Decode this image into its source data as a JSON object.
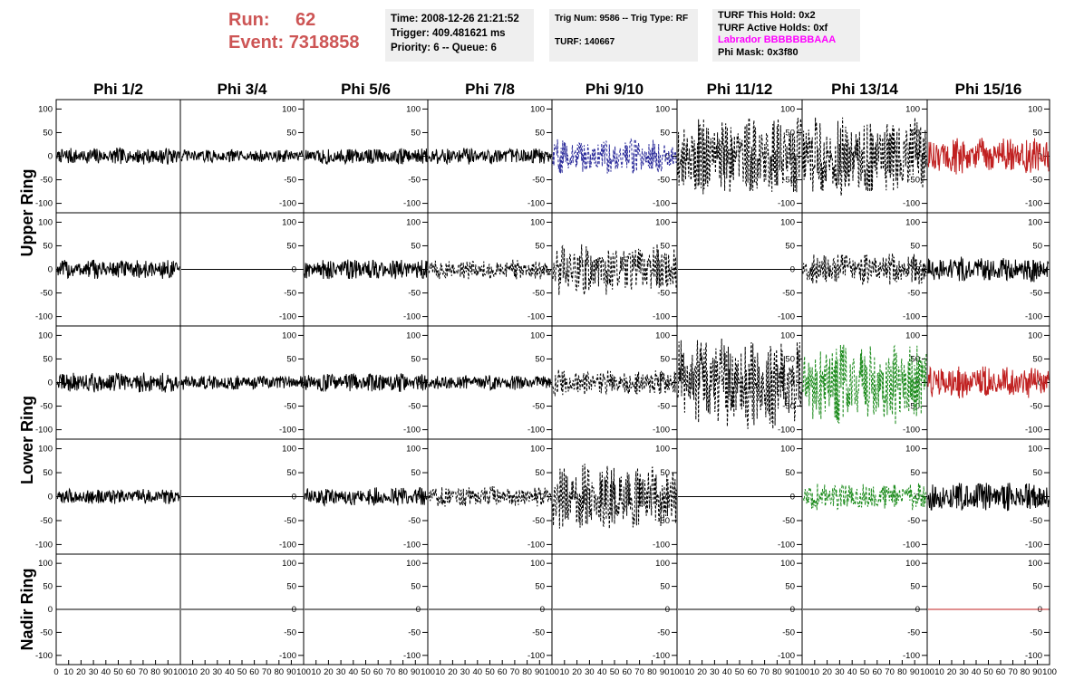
{
  "header": {
    "run_label": "Run:",
    "run_value": "62",
    "event_label": "Event:",
    "event_value": "7318858",
    "time": "Time: 2008-12-26 21:21:52",
    "trigger": "Trigger: 409.481621 ms",
    "priority": "Priority: 6 -- Queue: 6",
    "trig_num": "Trig Num: 9586 -- Trig Type: RF",
    "turf": "TURF: 140667",
    "turf_this_hold": "TURF This Hold: 0x2",
    "turf_active_holds": "TURF Active Holds: 0xf",
    "labrador": "Labrador BBBBBBBAAA",
    "phi_mask": "Phi Mask: 0x3f80"
  },
  "colors": {
    "run_text": "#cd5555",
    "info_bg": "#efefef",
    "labrador_text": "#ff00ff",
    "trace_black": "#000000",
    "trace_blue": "#2a2a9a",
    "trace_red": "#c02020",
    "trace_green": "#1a8a1a"
  },
  "chart_data": {
    "type": "line",
    "columns": [
      "Phi 1/2",
      "Phi 3/4",
      "Phi 5/6",
      "Phi 7/8",
      "Phi 9/10",
      "Phi 11/12",
      "Phi 13/14",
      "Phi 15/16"
    ],
    "row_labels": [
      {
        "label": "Upper Ring",
        "rows": [
          0,
          1
        ]
      },
      {
        "label": "Lower Ring",
        "rows": [
          2,
          3
        ]
      },
      {
        "label": "Nadir Ring",
        "rows": [
          4
        ]
      }
    ],
    "ylim": [
      -120,
      120
    ],
    "yticks": [
      100,
      50,
      0,
      -50,
      -100
    ],
    "xlim": [
      0,
      100
    ],
    "xticks_first": [
      "0",
      "10",
      "20",
      "30",
      "40",
      "50",
      "60",
      "70",
      "80",
      "90",
      "100"
    ],
    "xticks_other": [
      "10",
      "20",
      "30",
      "40",
      "50",
      "60",
      "70",
      "80",
      "90",
      "100"
    ],
    "panels": [
      [
        {
          "amp": 18,
          "color": "black",
          "style": "solid"
        },
        {
          "amp": 14,
          "color": "black",
          "style": "solid"
        },
        {
          "amp": 18,
          "color": "black",
          "style": "solid"
        },
        {
          "amp": 18,
          "color": "black",
          "style": "solid"
        },
        {
          "amp": 38,
          "color": "blue",
          "style": "dashed"
        },
        {
          "amp": 85,
          "color": "black",
          "style": "dashed"
        },
        {
          "amp": 85,
          "color": "black",
          "style": "dashed"
        },
        {
          "amp": 40,
          "color": "red",
          "style": "solid"
        }
      ],
      [
        {
          "amp": 22,
          "color": "black",
          "style": "solid"
        },
        {
          "amp": 0,
          "color": "black",
          "style": "flat"
        },
        {
          "amp": 22,
          "color": "black",
          "style": "solid"
        },
        {
          "amp": 22,
          "color": "black",
          "style": "dashed"
        },
        {
          "amp": 55,
          "color": "black",
          "style": "dashed"
        },
        {
          "amp": 0,
          "color": "black",
          "style": "flat"
        },
        {
          "amp": 35,
          "color": "black",
          "style": "dashed"
        },
        {
          "amp": 28,
          "color": "black",
          "style": "solid"
        }
      ],
      [
        {
          "amp": 22,
          "color": "black",
          "style": "solid"
        },
        {
          "amp": 16,
          "color": "black",
          "style": "solid"
        },
        {
          "amp": 20,
          "color": "black",
          "style": "solid"
        },
        {
          "amp": 16,
          "color": "black",
          "style": "solid"
        },
        {
          "amp": 28,
          "color": "black",
          "style": "dashed"
        },
        {
          "amp": 100,
          "color": "black",
          "style": "dashed"
        },
        {
          "amp": 95,
          "color": "green",
          "style": "dashed"
        },
        {
          "amp": 35,
          "color": "red",
          "style": "solid"
        }
      ],
      [
        {
          "amp": 16,
          "color": "black",
          "style": "solid"
        },
        {
          "amp": 0,
          "color": "black",
          "style": "flat"
        },
        {
          "amp": 20,
          "color": "black",
          "style": "solid"
        },
        {
          "amp": 22,
          "color": "black",
          "style": "dashed"
        },
        {
          "amp": 70,
          "color": "black",
          "style": "dashed"
        },
        {
          "amp": 0,
          "color": "black",
          "style": "flat"
        },
        {
          "amp": 30,
          "color": "green",
          "style": "dashed"
        },
        {
          "amp": 30,
          "color": "black",
          "style": "solid"
        }
      ],
      [
        {
          "amp": 0,
          "color": "black",
          "style": "flat"
        },
        {
          "amp": 0,
          "color": "black",
          "style": "flat"
        },
        {
          "amp": 0,
          "color": "black",
          "style": "flat"
        },
        {
          "amp": 0,
          "color": "black",
          "style": "flat"
        },
        {
          "amp": 0,
          "color": "black",
          "style": "flat"
        },
        {
          "amp": 0,
          "color": "black",
          "style": "flat"
        },
        {
          "amp": 0,
          "color": "black",
          "style": "flat"
        },
        {
          "amp": 0,
          "color": "red",
          "style": "flat"
        }
      ]
    ]
  }
}
